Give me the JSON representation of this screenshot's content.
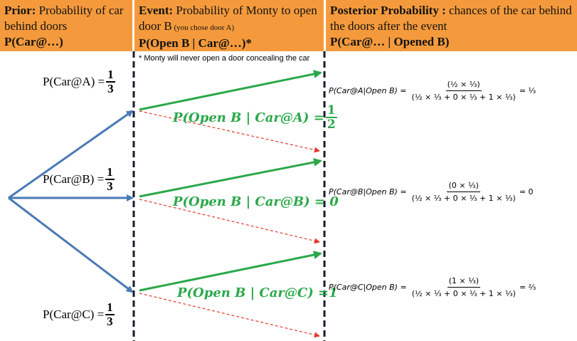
{
  "header": {
    "prior": {
      "bold": "Prior:",
      "text1": " Probability of car behind doors",
      "bold2": "P(Car@…)"
    },
    "event": {
      "bold": "Event:",
      "text1": " Probability of Monty to open door B",
      "small": " (you chose door A)",
      "bold2": "P(Open B | Car@…)*"
    },
    "posterior": {
      "bold": "Posterior Probability :",
      "text1": " chances of the car behind the doors after the event",
      "bold2": "P(Car@… | Opened B)"
    }
  },
  "note": "* Monty will never open a door concealing the car",
  "priors": [
    {
      "label": "P(Car@A) =",
      "num": "1",
      "den": "3"
    },
    {
      "label": "P(Car@B) =",
      "num": "1",
      "den": "3"
    },
    {
      "label": "P(Car@C) =",
      "num": "1",
      "den": "3"
    }
  ],
  "likelihoods": [
    {
      "text": "P(Open B | Car@A) =",
      "num": "1",
      "den": "2",
      "value": ""
    },
    {
      "text": "P(Open B | Car@B) = 0",
      "num": "",
      "den": "",
      "value": ""
    },
    {
      "text": "P(Open B | Car@C) =1",
      "num": "",
      "den": "",
      "value": ""
    }
  ],
  "posteriors": [
    {
      "lhs": "P(Car@A|Open B) =",
      "top": "(½ × ⅓)",
      "bottom": "(½ × ⅓ + 0 × ⅓ + 1 × ⅓)",
      "result": "= ⅓"
    },
    {
      "lhs": "P(Car@B|Open B) =",
      "top": "(0 × ⅓)",
      "bottom": "(½ × ⅓ + 0 × ⅓ + 1 × ⅓)",
      "result": "= 0"
    },
    {
      "lhs": "P(Car@C|Open B) =",
      "top": "(1 × ⅓)",
      "bottom": "(½ × ⅓ + 0 × ⅓ + 1 × ⅓)",
      "result": "= ⅔"
    }
  ],
  "colors": {
    "header": "#f59a3c",
    "blue_arrow": "#4a7ab5",
    "green_arrow": "#2aa84a",
    "red_arrow": "#e03a2e",
    "divider": "#1a1a2e"
  }
}
